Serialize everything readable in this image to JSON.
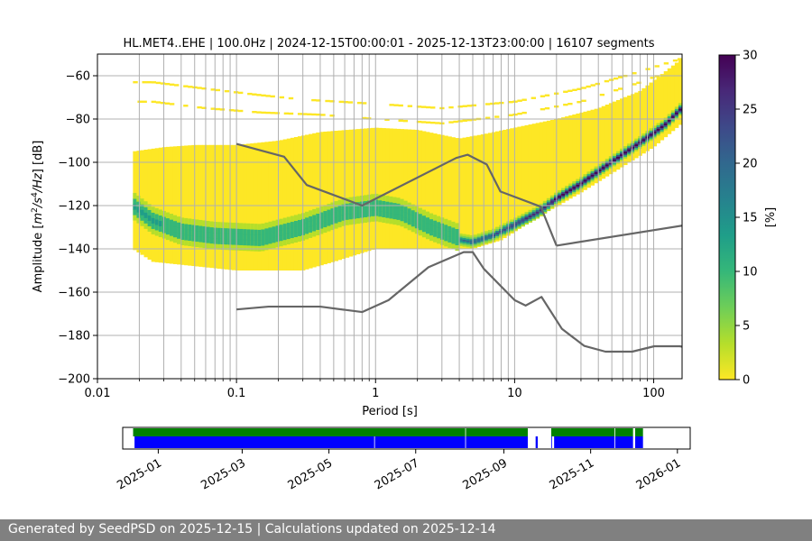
{
  "title": "HL.MET4..EHE | 100.0Hz | 2024-12-15T00:00:01 - 2025-12-13T23:00:00 | 16107 segments",
  "footer": "Generated by SeedPSD on 2025-12-15 | Calculations updated on 2025-12-14",
  "chart_data": [
    {
      "type": "heatmap",
      "title": "HL.MET4..EHE | 100.0Hz | 2024-12-15T00:00:01 - 2025-12-13T23:00:00 | 16107 segments",
      "xlabel": "Period [s]",
      "ylabel_parts": [
        "Amplitude [",
        "m",
        "2",
        "/",
        "s",
        "4",
        "/Hz",
        "] [dB]"
      ],
      "x_scale": "log",
      "xlim": [
        0.01,
        160
      ],
      "ylim": [
        -200,
        -50
      ],
      "grid": true,
      "x_ticks": [
        {
          "value": 0.01,
          "label": "0.01"
        },
        {
          "value": 0.1,
          "label": "0.1"
        },
        {
          "value": 1,
          "label": "1"
        },
        {
          "value": 10,
          "label": "10"
        },
        {
          "value": 100,
          "label": "100"
        }
      ],
      "y_ticks": [
        {
          "value": -60,
          "label": "−60"
        },
        {
          "value": -80,
          "label": "−80"
        },
        {
          "value": -100,
          "label": "−100"
        },
        {
          "value": -120,
          "label": "−120"
        },
        {
          "value": -140,
          "label": "−140"
        },
        {
          "value": -160,
          "label": "−160"
        },
        {
          "value": -180,
          "label": "−180"
        },
        {
          "value": -200,
          "label": "−200"
        }
      ],
      "colorbar": {
        "label": "[%]",
        "range": [
          0,
          30
        ],
        "ticks": [
          {
            "value": 0,
            "label": "0"
          },
          {
            "value": 5,
            "label": "5"
          },
          {
            "value": 10,
            "label": "10"
          },
          {
            "value": 15,
            "label": "15"
          },
          {
            "value": 20,
            "label": "20"
          },
          {
            "value": 25,
            "label": "25"
          },
          {
            "value": 30,
            "label": "30"
          }
        ],
        "colors": [
          "#fde725",
          "#b5de2b",
          "#6ece58",
          "#35b779",
          "#1f9e89",
          "#26828e",
          "#31688e",
          "#3e4989",
          "#482878",
          "#440154"
        ]
      },
      "psd_mode": [
        [
          0.018,
          -121
        ],
        [
          0.025,
          -128
        ],
        [
          0.04,
          -133
        ],
        [
          0.07,
          -135
        ],
        [
          0.15,
          -136
        ],
        [
          0.3,
          -131
        ],
        [
          0.6,
          -124
        ],
        [
          1,
          -122
        ],
        [
          1.5,
          -124
        ],
        [
          2.5,
          -131
        ],
        [
          4,
          -136
        ],
        [
          5,
          -137
        ],
        [
          7,
          -134
        ],
        [
          10,
          -129
        ],
        [
          15,
          -123
        ],
        [
          20,
          -117
        ],
        [
          30,
          -110
        ],
        [
          50,
          -100
        ],
        [
          80,
          -91
        ],
        [
          120,
          -83
        ],
        [
          160,
          -75
        ]
      ],
      "psd_upper": [
        [
          0.018,
          -95
        ],
        [
          0.03,
          -93
        ],
        [
          0.05,
          -92
        ],
        [
          0.1,
          -92
        ],
        [
          0.2,
          -90
        ],
        [
          0.4,
          -86
        ],
        [
          1,
          -84
        ],
        [
          2,
          -85
        ],
        [
          4,
          -89
        ],
        [
          6,
          -87
        ],
        [
          10,
          -84
        ],
        [
          20,
          -80
        ],
        [
          40,
          -75
        ],
        [
          80,
          -67
        ],
        [
          160,
          -52
        ]
      ],
      "psd_lower": [
        [
          0.018,
          -140
        ],
        [
          0.025,
          -146
        ],
        [
          0.05,
          -148
        ],
        [
          0.1,
          -150
        ],
        [
          0.3,
          -150
        ],
        [
          0.5,
          -146
        ],
        [
          1,
          -140
        ],
        [
          3,
          -140
        ],
        [
          5,
          -140
        ],
        [
          8,
          -136
        ],
        [
          15,
          -125
        ],
        [
          30,
          -114
        ],
        [
          60,
          -102
        ],
        [
          100,
          -93
        ],
        [
          160,
          -82
        ]
      ],
      "sparse_bands": [
        [
          [
            0.025,
            -63
          ],
          [
            0.06,
            -66
          ],
          [
            0.15,
            -69
          ],
          [
            0.3,
            -71
          ],
          [
            1,
            -73
          ],
          [
            3,
            -75
          ],
          [
            10,
            -72
          ],
          [
            30,
            -66
          ],
          [
            80,
            -58
          ],
          [
            160,
            -52
          ]
        ],
        [
          [
            0.025,
            -72
          ],
          [
            0.06,
            -75
          ],
          [
            0.15,
            -77
          ],
          [
            0.4,
            -78
          ],
          [
            1,
            -80
          ],
          [
            3,
            -82
          ],
          [
            10,
            -78
          ],
          [
            30,
            -72
          ],
          [
            80,
            -63
          ],
          [
            160,
            -56
          ]
        ]
      ],
      "series": [
        {
          "name": "",
          "color": "#666666",
          "x": [
            0.1,
            0.22,
            0.32,
            0.8,
            3.8,
            4.6,
            6.3,
            7.9,
            15.4,
            20
          ],
          "y": [
            -91.5,
            -97.4,
            -110.5,
            -120,
            -98,
            -96.5,
            -101,
            -113.5,
            -120.5,
            -138.5
          ]
        },
        {
          "name": "",
          "color": "#666666",
          "x": [
            20,
            170
          ],
          "y": [
            -138.5,
            -129
          ]
        },
        {
          "name": "",
          "color": "#666666",
          "x": [
            0.1,
            0.17,
            0.4,
            0.8,
            1.24,
            2.4,
            4.3,
            5.0,
            6.0,
            10,
            12,
            15.6,
            21.9,
            31.6,
            45,
            70,
            101,
            154,
            170
          ],
          "y": [
            -168,
            -166.7,
            -166.7,
            -169.2,
            -163.7,
            -148.5,
            -141.5,
            -141.5,
            -149.2,
            -163.7,
            -166.2,
            -162.2,
            -177,
            -184.8,
            -187.5,
            -187.5,
            -185,
            -185,
            -185.5
          ]
        }
      ]
    },
    {
      "type": "timeline",
      "start": "2024-12-15",
      "end": "2025-12-13",
      "xlim": [
        "2024-12-07",
        "2026-01-10"
      ],
      "tick_labels": [
        {
          "date": "2025-01-01",
          "label": "2025-01"
        },
        {
          "date": "2025-03-01",
          "label": "2025-03"
        },
        {
          "date": "2025-05-01",
          "label": "2025-05"
        },
        {
          "date": "2025-07-01",
          "label": "2025-07"
        },
        {
          "date": "2025-09-01",
          "label": "2025-09"
        },
        {
          "date": "2025-11-01",
          "label": "2025-11"
        },
        {
          "date": "2026-01-01",
          "label": "2026-01"
        }
      ],
      "rows": [
        {
          "name": "",
          "color": "#008000",
          "segments": [
            [
              "2024-12-14",
              "2025-08-05"
            ],
            [
              "2025-08-05",
              "2025-09-18"
            ],
            [
              "2025-10-04",
              "2025-11-18"
            ],
            [
              "2025-11-18",
              "2025-12-01"
            ],
            [
              "2025-12-02",
              "2025-12-08"
            ]
          ]
        },
        {
          "name": "",
          "color": "#0000ff",
          "segments": [
            [
              "2024-12-15",
              "2025-06-02"
            ],
            [
              "2025-06-02",
              "2025-08-05"
            ],
            [
              "2025-08-05",
              "2025-09-18"
            ],
            [
              "2025-09-23",
              "2025-09-25"
            ],
            [
              "2025-10-04",
              "2025-10-05"
            ],
            [
              "2025-10-06",
              "2025-11-18"
            ],
            [
              "2025-11-18",
              "2025-12-01"
            ],
            [
              "2025-12-02",
              "2025-12-08"
            ]
          ]
        }
      ]
    }
  ]
}
